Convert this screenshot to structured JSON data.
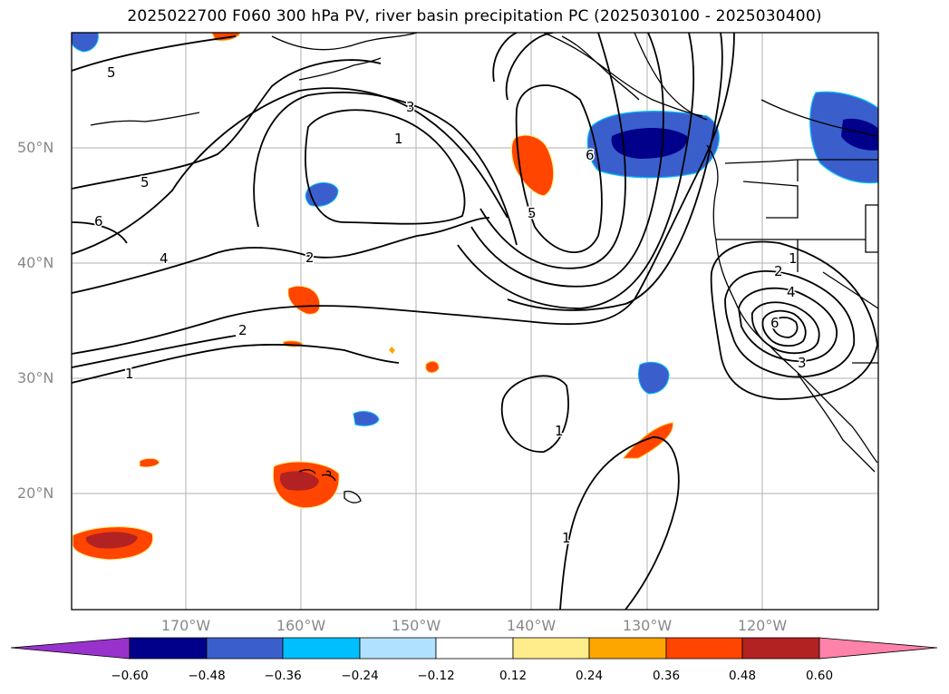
{
  "title": "2025022700 F060 300 hPa PV, river basin precipitation PC (2025030100 - 2025030400)",
  "lat_labels": [
    "50°N",
    "40°N",
    "30°N",
    "20°N"
  ],
  "lon_labels": [
    "170°W",
    "160°W",
    "150°W",
    "140°W",
    "130°W",
    "120°W"
  ],
  "colorbar": {
    "tick_labels": [
      "−0.60",
      "−0.48",
      "−0.36",
      "−0.24",
      "−0.12",
      "0.12",
      "0.24",
      "0.36",
      "0.48",
      "0.60"
    ],
    "colors": [
      "#9932cc",
      "#00008b",
      "#3a5fcd",
      "#00bfff",
      "#b0e2ff",
      "#ffffff",
      "#ffec8b",
      "#ffa500",
      "#ff4500",
      "#b22222",
      "#ff82ab"
    ]
  },
  "contour_labels": [
    "5",
    "3",
    "1",
    "5",
    "6",
    "4",
    "2",
    "2",
    "1",
    "1",
    "2",
    "4",
    "6",
    "3",
    "1",
    "1",
    "5",
    "6"
  ]
}
